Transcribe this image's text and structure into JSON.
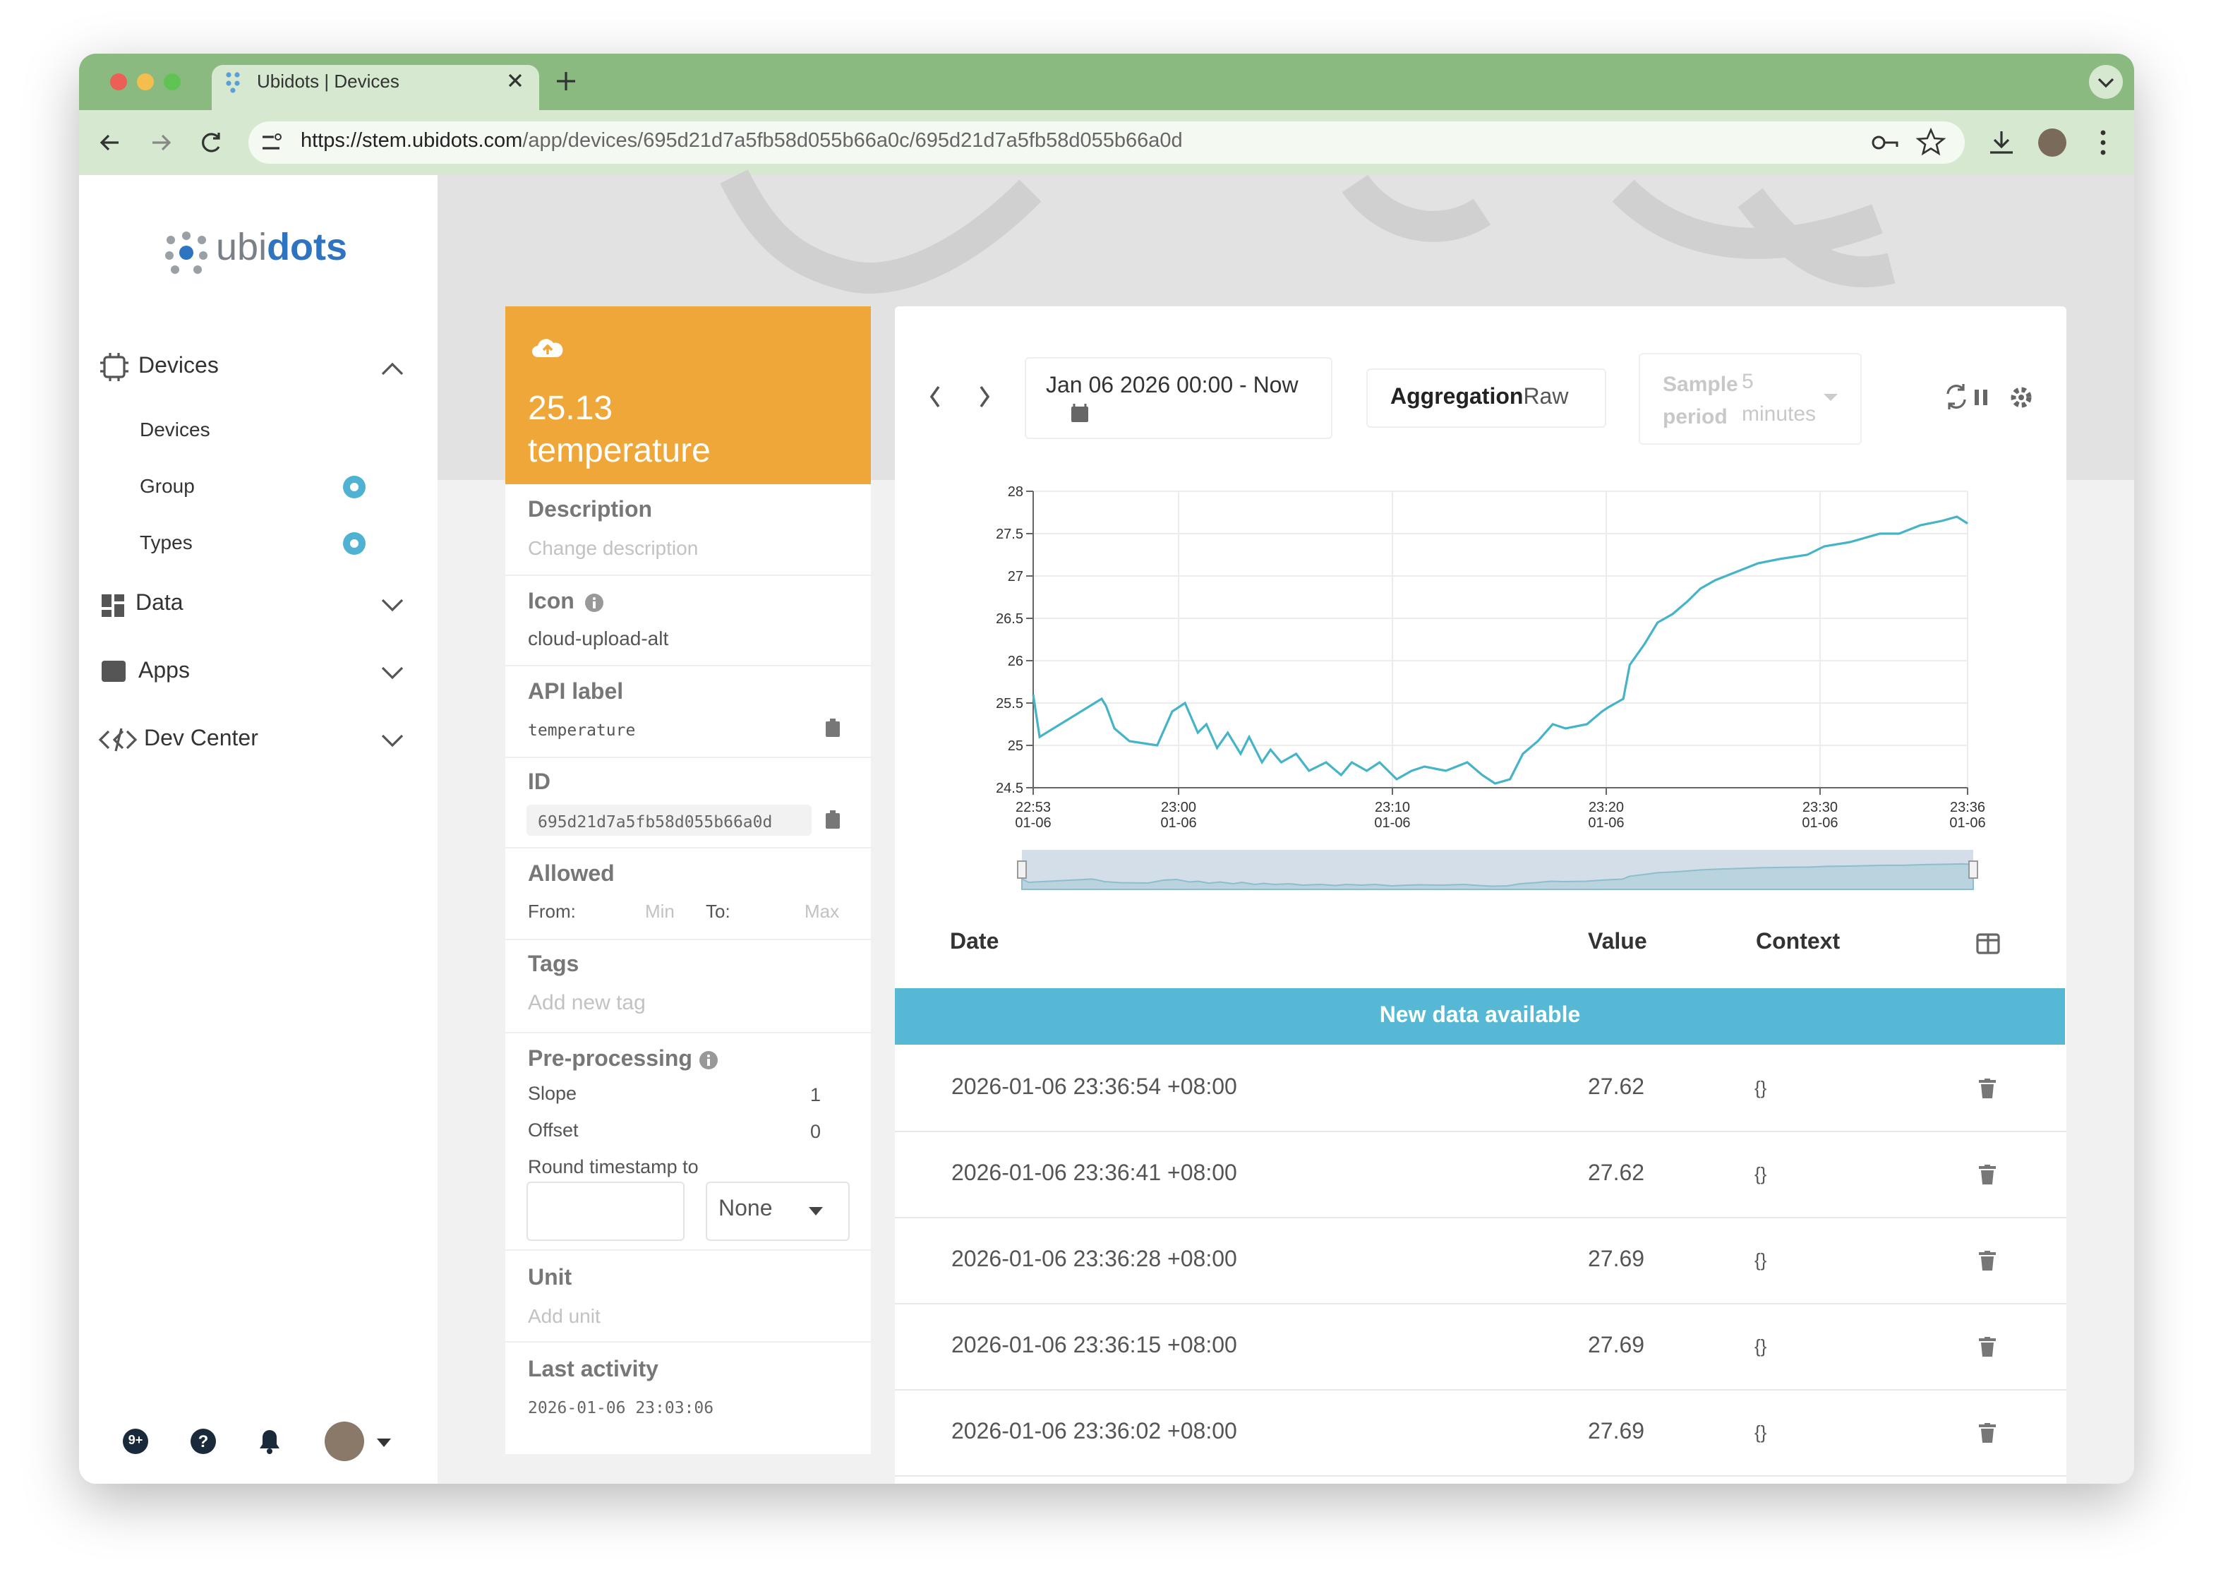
{
  "browser": {
    "tab_title": "Ubidots | Devices",
    "url_host": "https://stem.ubidots.com",
    "url_path": "/app/devices/695d21d7a5fb58d055b66a0c/695d21d7a5fb58d055b66a0d"
  },
  "sidebar": {
    "logo": [
      "ubi",
      "dots"
    ],
    "nav": [
      {
        "label": "Devices",
        "children": [
          "Devices",
          "Group",
          "Types"
        ]
      },
      {
        "label": "Data"
      },
      {
        "label": "Apps"
      },
      {
        "label": "Dev Center"
      }
    ],
    "badge": "9+"
  },
  "variable": {
    "value": "25.13",
    "name": "temperature",
    "description": {
      "label": "Description",
      "placeholder": "Change description"
    },
    "icon": {
      "label": "Icon",
      "value": "cloud-upload-alt"
    },
    "api_label": {
      "label": "API label",
      "value": "temperature"
    },
    "id": {
      "label": "ID",
      "value": "695d21d7a5fb58d055b66a0d"
    },
    "allowed": {
      "label": "Allowed",
      "from": "From:",
      "min": "Min",
      "to": "To:",
      "max": "Max"
    },
    "tags": {
      "label": "Tags",
      "placeholder": "Add new tag"
    },
    "preprocessing": {
      "label": "Pre-processing",
      "slope_label": "Slope",
      "slope": 1,
      "offset_label": "Offset",
      "offset": 0,
      "round_label": "Round timestamp to",
      "round": "None"
    },
    "unit": {
      "label": "Unit",
      "placeholder": "Add unit"
    },
    "last_activity": {
      "label": "Last activity",
      "value": "2026-01-06 23:03:06"
    }
  },
  "toolbar": {
    "date_range": "Jan 06 2026 00:00 - Now",
    "aggregation_label": "Aggregation",
    "aggregation": "Raw",
    "sample_label": "Sample period",
    "sample": 5,
    "sample_unit": "minutes"
  },
  "chart_data": {
    "type": "line",
    "color": "#45b3c8",
    "grid": true,
    "x": [
      1373.2,
      1373.5,
      1376.4,
      1376.6,
      1377.0,
      1377.7,
      1379.0,
      1379.7,
      1380.3,
      1380.9,
      1381.3,
      1381.8,
      1382.3,
      1382.9,
      1383.3,
      1383.9,
      1384.3,
      1384.8,
      1385.5,
      1386.1,
      1386.9,
      1387.6,
      1388.1,
      1388.8,
      1389.4,
      1390.2,
      1390.9,
      1391.5,
      1392.5,
      1393.5,
      1394.2,
      1394.8,
      1395.5,
      1396.1,
      1396.8,
      1397.5,
      1398.1,
      1399.1,
      1399.8,
      1400.1,
      1400.8,
      1401.1,
      1401.8,
      1402.4,
      1403.1,
      1403.8,
      1404.4,
      1405.1,
      1406.1,
      1407.1,
      1408.1,
      1409.4,
      1410.2,
      1411.4,
      1412.8,
      1413.7,
      1414.7,
      1415.7,
      1416.4,
      1416.9
    ],
    "values": [
      25.6,
      25.1,
      25.55,
      25.47,
      25.2,
      25.05,
      25.0,
      25.4,
      25.5,
      25.15,
      25.25,
      24.97,
      25.15,
      24.9,
      25.1,
      24.8,
      24.95,
      24.8,
      24.9,
      24.7,
      24.8,
      24.65,
      24.8,
      24.7,
      24.8,
      24.6,
      24.7,
      24.75,
      24.7,
      24.8,
      24.65,
      24.55,
      24.6,
      24.9,
      25.05,
      25.25,
      25.2,
      25.25,
      25.4,
      25.45,
      25.55,
      25.95,
      26.2,
      26.45,
      26.55,
      26.7,
      26.85,
      26.95,
      27.05,
      27.15,
      27.2,
      27.25,
      27.35,
      27.4,
      27.5,
      27.5,
      27.6,
      27.65,
      27.7,
      27.62
    ],
    "xlim": [
      1373.2,
      1416.9
    ],
    "xticks": [
      {
        "value": 1373.2,
        "label": "22:53 01-06"
      },
      {
        "value": 1380,
        "label": "23:00 01-06"
      },
      {
        "value": 1390,
        "label": "23:10 01-06"
      },
      {
        "value": 1400,
        "label": "23:20 01-06"
      },
      {
        "value": 1410,
        "label": "23:30 01-06"
      },
      {
        "value": 1416.9,
        "label": "23:36 01-06"
      }
    ],
    "ylim": [
      24.5,
      28
    ],
    "yticks": [
      24.5,
      25,
      25.5,
      26,
      26.5,
      27,
      27.5,
      28
    ]
  },
  "table": {
    "headers": [
      "Date",
      "Value",
      "Context"
    ],
    "banner": "New data available",
    "rows": [
      [
        "2026-01-06 23:36:54 +08:00",
        "27.62",
        "{}"
      ],
      [
        "2026-01-06 23:36:41 +08:00",
        "27.62",
        "{}"
      ],
      [
        "2026-01-06 23:36:28 +08:00",
        "27.69",
        "{}"
      ],
      [
        "2026-01-06 23:36:15 +08:00",
        "27.69",
        "{}"
      ],
      [
        "2026-01-06 23:36:02 +08:00",
        "27.69",
        "{}"
      ]
    ]
  }
}
